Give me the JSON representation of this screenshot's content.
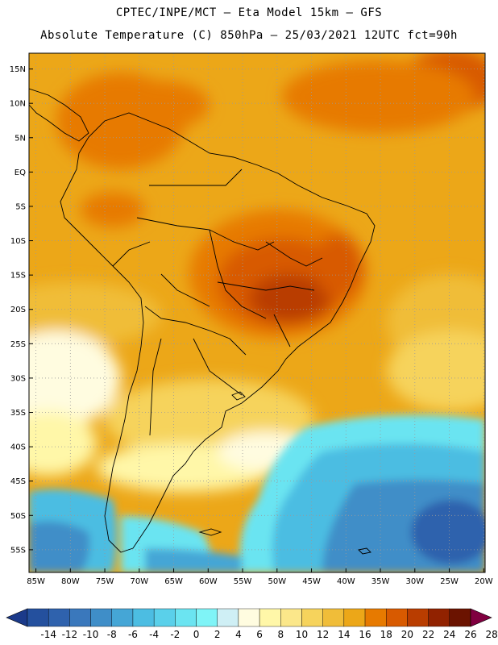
{
  "header": {
    "line1": "CPTEC/INPE/MCT –  Eta Model 15km – GFS",
    "line2": "Absolute Temperature (C) 850hPa – 25/03/2021 12UTC fct=90h"
  },
  "map": {
    "lat_labels": [
      "15N",
      "10N",
      "5N",
      "EQ",
      "5S",
      "10S",
      "15S",
      "20S",
      "25S",
      "30S",
      "35S",
      "40S",
      "45S",
      "50S",
      "55S"
    ],
    "lat_values": [
      15,
      10,
      5,
      0,
      -5,
      -10,
      -15,
      -20,
      -25,
      -30,
      -35,
      -40,
      -45,
      -50,
      -55
    ],
    "lon_labels": [
      "85W",
      "80W",
      "75W",
      "70W",
      "65W",
      "60W",
      "55W",
      "50W",
      "45W",
      "40W",
      "35W",
      "30W",
      "25W",
      "20W"
    ],
    "lon_values": [
      -85,
      -80,
      -75,
      -70,
      -65,
      -60,
      -55,
      -50,
      -45,
      -40,
      -35,
      -30,
      -25,
      -20
    ]
  },
  "colorbar": {
    "labels": [
      "-14",
      "-12",
      "-10",
      "-8",
      "-6",
      "-4",
      "-2",
      "0",
      "2",
      "4",
      "6",
      "8",
      "10",
      "12",
      "14",
      "16",
      "18",
      "20",
      "22",
      "24",
      "26",
      "28"
    ],
    "colors": [
      "#1b3a8a",
      "#24509e",
      "#2f62ad",
      "#3a78bc",
      "#3f8ec8",
      "#45a6d6",
      "#4cbde2",
      "#5ad0ea",
      "#6be4f1",
      "#7ff4f7",
      "#cfeff5",
      "#fffce0",
      "#fff7a8",
      "#fbe78a",
      "#f6d35c",
      "#f0bd39",
      "#eca718",
      "#e77a00",
      "#d85a00",
      "#b93d00",
      "#912200",
      "#6b1300",
      "#800040"
    ]
  }
}
